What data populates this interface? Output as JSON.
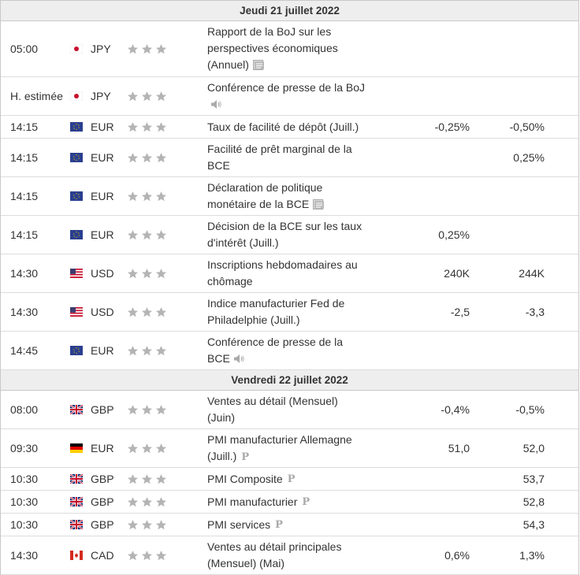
{
  "days": [
    {
      "title": "Jeudi 21 juillet 2022",
      "events": [
        {
          "time": "05:00",
          "flag": "jp",
          "currency": "JPY",
          "lines": [
            "Rapport de la BoJ sur les",
            "perspectives économiques",
            "(Annuel)"
          ],
          "icon": "document-icon",
          "previous": "",
          "actual": "",
          "h": 70
        },
        {
          "time": "H. estimée",
          "flag": "jp",
          "currency": "JPY",
          "lines": [
            "Conférence de presse de la BoJ",
            ""
          ],
          "icon": "speaker-icon",
          "previous": "",
          "actual": "",
          "h": 48
        },
        {
          "time": "14:15",
          "flag": "eu",
          "currency": "EUR",
          "lines": [
            "Taux de facilité de dépôt (Juill.)"
          ],
          "icon": "",
          "previous": "-0,25%",
          "actual": "-0,50%",
          "h": 28
        },
        {
          "time": "14:15",
          "flag": "eu",
          "currency": "EUR",
          "lines": [
            "Facilité de prêt marginal de la",
            "BCE"
          ],
          "icon": "",
          "previous": "",
          "actual": "0,25%",
          "h": 48
        },
        {
          "time": "14:15",
          "flag": "eu",
          "currency": "EUR",
          "lines": [
            "Déclaration de politique",
            "monétaire de la BCE"
          ],
          "icon": "document-icon",
          "previous": "",
          "actual": "",
          "h": 48
        },
        {
          "time": "14:15",
          "flag": "eu",
          "currency": "EUR",
          "lines": [
            "Décision de la BCE sur les taux",
            "d'intérêt (Juill.)"
          ],
          "icon": "",
          "previous": "0,25%",
          "actual": "",
          "h": 48
        },
        {
          "time": "14:30",
          "flag": "us",
          "currency": "USD",
          "lines": [
            "Inscriptions hebdomadaires au",
            "chômage"
          ],
          "icon": "",
          "previous": "240K",
          "actual": "244K",
          "h": 48
        },
        {
          "time": "14:30",
          "flag": "us",
          "currency": "USD",
          "lines": [
            "Indice manufacturier Fed de",
            "Philadelphie (Juill.)"
          ],
          "icon": "",
          "previous": "-2,5",
          "actual": "-3,3",
          "h": 48
        },
        {
          "time": "14:45",
          "flag": "eu",
          "currency": "EUR",
          "lines": [
            "Conférence de presse de la",
            "BCE"
          ],
          "icon": "speaker-icon",
          "previous": "",
          "actual": "",
          "h": 48
        }
      ]
    },
    {
      "title": "Vendredi 22 juillet 2022",
      "events": [
        {
          "time": "08:00",
          "flag": "gb",
          "currency": "GBP",
          "lines": [
            "Ventes au détail (Mensuel)",
            "(Juin)"
          ],
          "icon": "",
          "previous": "-0,4%",
          "actual": "-0,5%",
          "h": 48
        },
        {
          "time": "09:30",
          "flag": "de",
          "currency": "EUR",
          "lines": [
            "PMI manufacturier Allemagne",
            "(Juill.)"
          ],
          "icon": "preliminary-icon",
          "previous": "51,0",
          "actual": "52,0",
          "h": 48
        },
        {
          "time": "10:30",
          "flag": "gb",
          "currency": "GBP",
          "lines": [
            "PMI Composite"
          ],
          "icon": "preliminary-icon",
          "previous": "",
          "actual": "53,7",
          "h": 28
        },
        {
          "time": "10:30",
          "flag": "gb",
          "currency": "GBP",
          "lines": [
            "PMI manufacturier"
          ],
          "icon": "preliminary-icon",
          "previous": "",
          "actual": "52,8",
          "h": 28
        },
        {
          "time": "10:30",
          "flag": "gb",
          "currency": "GBP",
          "lines": [
            "PMI services"
          ],
          "icon": "preliminary-icon",
          "previous": "",
          "actual": "54,3",
          "h": 28
        },
        {
          "time": "14:30",
          "flag": "ca",
          "currency": "CAD",
          "lines": [
            "Ventes au détail principales",
            "(Mensuel) (Mai)"
          ],
          "icon": "",
          "previous": "0,6%",
          "actual": "1,3%",
          "h": 48
        }
      ]
    }
  ],
  "preliminary_mark": "P",
  "star_color": "#b4b4b4"
}
